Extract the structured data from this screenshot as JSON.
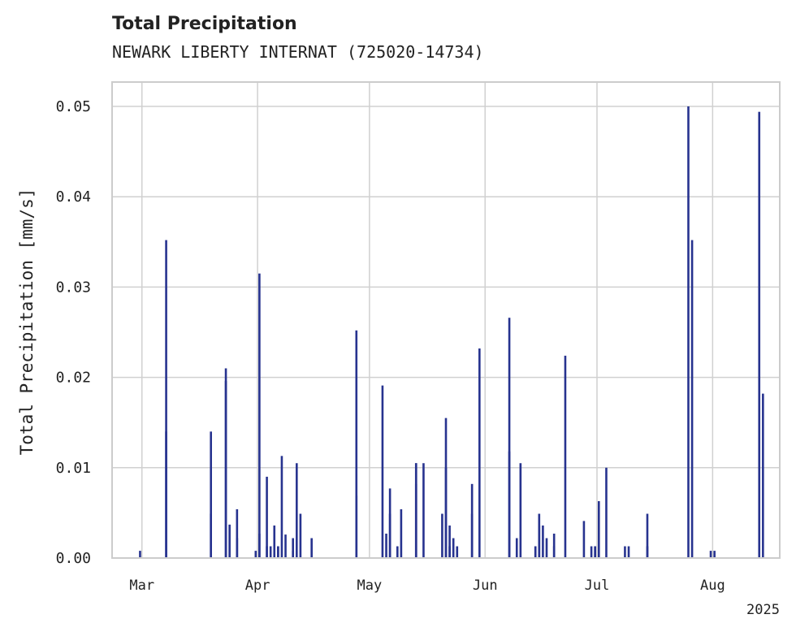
{
  "chart_data": {
    "type": "bar",
    "title": "Total Precipitation",
    "subtitle": "NEWARK LIBERTY INTERNAT (725020-14734)",
    "xlabel": "",
    "ylabel": "Total Precipitation [mm/s]",
    "ylim": [
      0,
      0.05
    ],
    "yticks": [
      0.0,
      0.01,
      0.02,
      0.03,
      0.04,
      0.05
    ],
    "ytick_labels": [
      "0.00",
      "0.01",
      "0.02",
      "0.03",
      "0.04",
      "0.05"
    ],
    "xlim": [
      "2025-02-21",
      "2025-08-19"
    ],
    "xticks": [
      {
        "date": "2025-03-01",
        "label": "Mar"
      },
      {
        "date": "2025-04-01",
        "label": "Apr"
      },
      {
        "date": "2025-05-01",
        "label": "May"
      },
      {
        "date": "2025-06-01",
        "label": "Jun"
      },
      {
        "date": "2025-07-01",
        "label": "Jul"
      },
      {
        "date": "2025-08-01",
        "label": "Aug"
      }
    ],
    "x_offset_label": "2025",
    "grid": true,
    "color": "#27338f",
    "x": [
      "2025-02-28",
      "2025-03-07",
      "2025-03-07",
      "2025-03-19",
      "2025-03-19",
      "2025-03-23",
      "2025-03-23",
      "2025-03-24",
      "2025-03-26",
      "2025-03-26",
      "2025-03-31",
      "2025-04-01",
      "2025-04-01",
      "2025-04-03",
      "2025-04-03",
      "2025-04-04",
      "2025-04-05",
      "2025-04-06",
      "2025-04-06",
      "2025-04-07",
      "2025-04-08",
      "2025-04-10",
      "2025-04-10",
      "2025-04-11",
      "2025-04-12",
      "2025-04-15",
      "2025-04-27",
      "2025-04-27",
      "2025-05-04",
      "2025-05-05",
      "2025-05-06",
      "2025-05-06",
      "2025-05-08",
      "2025-05-09",
      "2025-05-13",
      "2025-05-13",
      "2025-05-13",
      "2025-05-15",
      "2025-05-20",
      "2025-05-21",
      "2025-05-21",
      "2025-05-22",
      "2025-05-22",
      "2025-05-23",
      "2025-05-24",
      "2025-05-28",
      "2025-05-28",
      "2025-05-30",
      "2025-06-07",
      "2025-06-07",
      "2025-06-09",
      "2025-06-10",
      "2025-06-14",
      "2025-06-14",
      "2025-06-15",
      "2025-06-15",
      "2025-06-16",
      "2025-06-17",
      "2025-06-19",
      "2025-06-19",
      "2025-06-22",
      "2025-06-27",
      "2025-06-29",
      "2025-06-30",
      "2025-06-30",
      "2025-07-01",
      "2025-07-03",
      "2025-07-08",
      "2025-07-09",
      "2025-07-14",
      "2025-07-14",
      "2025-07-25",
      "2025-07-26",
      "2025-07-31",
      "2025-08-13"
    ],
    "values": [
      0.0008,
      0.0352,
      0.014,
      0.014,
      0.0049,
      0.0196,
      0.021,
      0.0037,
      0.0054,
      0.0022,
      0.0008,
      0.0027,
      0.0315,
      0.009,
      0.0013,
      0.0013,
      0.0036,
      0.0013,
      0.0013,
      0.0113,
      0.0026,
      0.0008,
      0.0022,
      0.0105,
      0.0049,
      0.0022,
      0.0069,
      0.0252,
      0.0191,
      0.0027,
      0.0077,
      0.0049,
      0.0013,
      0.0054,
      0.0082,
      0.0105,
      0.0105,
      0.0105,
      0.0049,
      0.0155,
      0.01,
      0.0036,
      0.0013,
      0.0022,
      0.0013,
      0.0049,
      0.0082,
      0.0232,
      0.0118,
      0.0266,
      0.0022,
      0.0105,
      0.0013,
      0.0013,
      0.0036,
      0.0049,
      0.0036,
      0.0022,
      0.0027,
      0.0013,
      0.0224,
      0.0041,
      0.0013,
      0.0013,
      0.0013,
      0.0063,
      0.01,
      0.0013,
      0.0013,
      0.0049,
      0.0013,
      0.05,
      0.0352,
      0.0008,
      0.0494
    ]
  },
  "extra_bars": {
    "x": [
      "2025-08-01",
      "2025-08-14"
    ],
    "values": [
      0.0008,
      0.0182
    ]
  }
}
